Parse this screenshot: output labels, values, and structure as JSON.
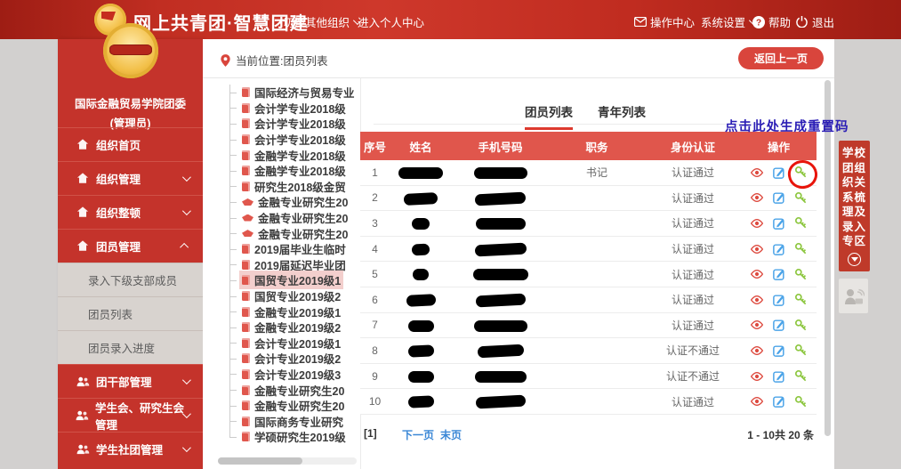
{
  "header": {
    "brand": "网上共青团·智慧团建",
    "switch_org": "切换其他组织",
    "personal_center": "进入个人中心",
    "action_center": "操作中心",
    "system_settings": "系统设置",
    "help": "帮助",
    "logout": "退出"
  },
  "sidebar": {
    "org_name": "国际金融贸易学院团委",
    "role": "(管理员)",
    "menu": [
      {
        "label": "组织首页",
        "icon": "home",
        "arrow": ""
      },
      {
        "label": "组织管理",
        "icon": "sitemap",
        "arrow": "down"
      },
      {
        "label": "组织整顿",
        "icon": "sitemap",
        "arrow": "down"
      },
      {
        "label": "团员管理",
        "icon": "users",
        "arrow": "up"
      }
    ],
    "submenu": [
      {
        "label": "录入下级支部成员"
      },
      {
        "label": "团员列表",
        "current": true
      },
      {
        "label": "团员录入进度"
      }
    ],
    "menu2": [
      {
        "label": "团干部管理",
        "icon": "users",
        "arrow": "down"
      },
      {
        "label": "学生会、研究生会管理",
        "icon": "users",
        "arrow": "down"
      },
      {
        "label": "学生社团管理",
        "icon": "users",
        "arrow": "down"
      }
    ]
  },
  "breadcrumb": {
    "location": "当前位置:团员列表",
    "back_button": "返回上一页"
  },
  "tree": {
    "items": [
      {
        "label": "国际经济与贸易专业",
        "icon": "doc",
        "selected": false
      },
      {
        "label": "会计学专业2018级",
        "icon": "doc",
        "selected": false
      },
      {
        "label": "会计学专业2018级",
        "icon": "doc",
        "selected": false
      },
      {
        "label": "会计学专业2018级",
        "icon": "doc",
        "selected": false
      },
      {
        "label": "金融学专业2018级",
        "icon": "doc",
        "selected": false
      },
      {
        "label": "金融学专业2018级",
        "icon": "doc",
        "selected": false
      },
      {
        "label": "研究生2018级金贸",
        "icon": "doc",
        "selected": false
      },
      {
        "label": "金融专业研究生20",
        "icon": "cap",
        "selected": false
      },
      {
        "label": "金融专业研究生20",
        "icon": "cap",
        "selected": false
      },
      {
        "label": "金融专业研究生20",
        "icon": "cap",
        "selected": false
      },
      {
        "label": "2019届毕业生临时",
        "icon": "doc",
        "selected": false
      },
      {
        "label": "2019届延迟毕业团",
        "icon": "doc",
        "selected": false
      },
      {
        "label": "国贸专业2019级1",
        "icon": "doc",
        "selected": true
      },
      {
        "label": "国贸专业2019级2",
        "icon": "doc",
        "selected": false
      },
      {
        "label": "金融专业2019级1",
        "icon": "doc",
        "selected": false
      },
      {
        "label": "金融专业2019级2",
        "icon": "doc",
        "selected": false
      },
      {
        "label": "会计专业2019级1",
        "icon": "doc",
        "selected": false
      },
      {
        "label": "会计专业2019级2",
        "icon": "doc",
        "selected": false
      },
      {
        "label": "会计专业2019级3",
        "icon": "doc",
        "selected": false
      },
      {
        "label": "金融专业研究生20",
        "icon": "doc",
        "selected": false
      },
      {
        "label": "金融专业研究生20",
        "icon": "doc",
        "selected": false
      },
      {
        "label": "国际商务专业研究",
        "icon": "doc",
        "selected": false
      },
      {
        "label": "学硕研究生2019级",
        "icon": "doc",
        "selected": false
      }
    ]
  },
  "tabs": [
    {
      "label": "团员列表",
      "active": true
    },
    {
      "label": "青年列表",
      "active": false
    }
  ],
  "annotation": "点击此处生成重置码",
  "table": {
    "columns": [
      "序号",
      "姓名",
      "手机号码",
      "职务",
      "身份认证",
      "操作"
    ],
    "rows": [
      {
        "index": "1",
        "position": "书记",
        "auth": "认证通过",
        "name_w": 50,
        "phone_w": 60,
        "highlight_key": true
      },
      {
        "index": "2",
        "position": "",
        "auth": "认证通过",
        "name_w": 38,
        "phone_w": 57,
        "highlight_key": false
      },
      {
        "index": "3",
        "position": "",
        "auth": "认证通过",
        "name_w": 20,
        "phone_w": 56,
        "highlight_key": false
      },
      {
        "index": "4",
        "position": "",
        "auth": "认证通过",
        "name_w": 20,
        "phone_w": 58,
        "highlight_key": false
      },
      {
        "index": "5",
        "position": "",
        "auth": "认证通过",
        "name_w": 18,
        "phone_w": 62,
        "highlight_key": false
      },
      {
        "index": "6",
        "position": "",
        "auth": "认证通过",
        "name_w": 33,
        "phone_w": 56,
        "highlight_key": false
      },
      {
        "index": "7",
        "position": "",
        "auth": "认证通过",
        "name_w": 29,
        "phone_w": 60,
        "highlight_key": false
      },
      {
        "index": "8",
        "position": "",
        "auth": "认证不通过",
        "name_w": 29,
        "phone_w": 52,
        "highlight_key": false
      },
      {
        "index": "9",
        "position": "",
        "auth": "认证不通过",
        "name_w": 29,
        "phone_w": 58,
        "highlight_key": false
      },
      {
        "index": "10",
        "position": "",
        "auth": "认证通过",
        "name_w": 29,
        "phone_w": 56,
        "highlight_key": false
      }
    ]
  },
  "pagination": {
    "current": "[1]",
    "next": "下一页",
    "last": "末页",
    "total": "1 - 10共 20 条"
  },
  "side_banner": {
    "full_text": "学校团组织关系梳理及录入专区",
    "rows": [
      "学校",
      "团组",
      "织关",
      "系梳",
      "理及",
      "录入",
      "专区"
    ]
  },
  "colors": {
    "header_red": "#c12e22",
    "sidebar_red": "#c4332b",
    "table_header_red": "#e0564c",
    "tab_underline_red": "#dd392e",
    "link_blue": "#3a87d6",
    "annotation_blue": "#2a1db5",
    "view_icon_red": "#dd4a3f",
    "edit_icon_blue": "#4aa3e8",
    "key_icon_green": "#8cc63e",
    "highlight_circle_red": "#e8150b"
  }
}
